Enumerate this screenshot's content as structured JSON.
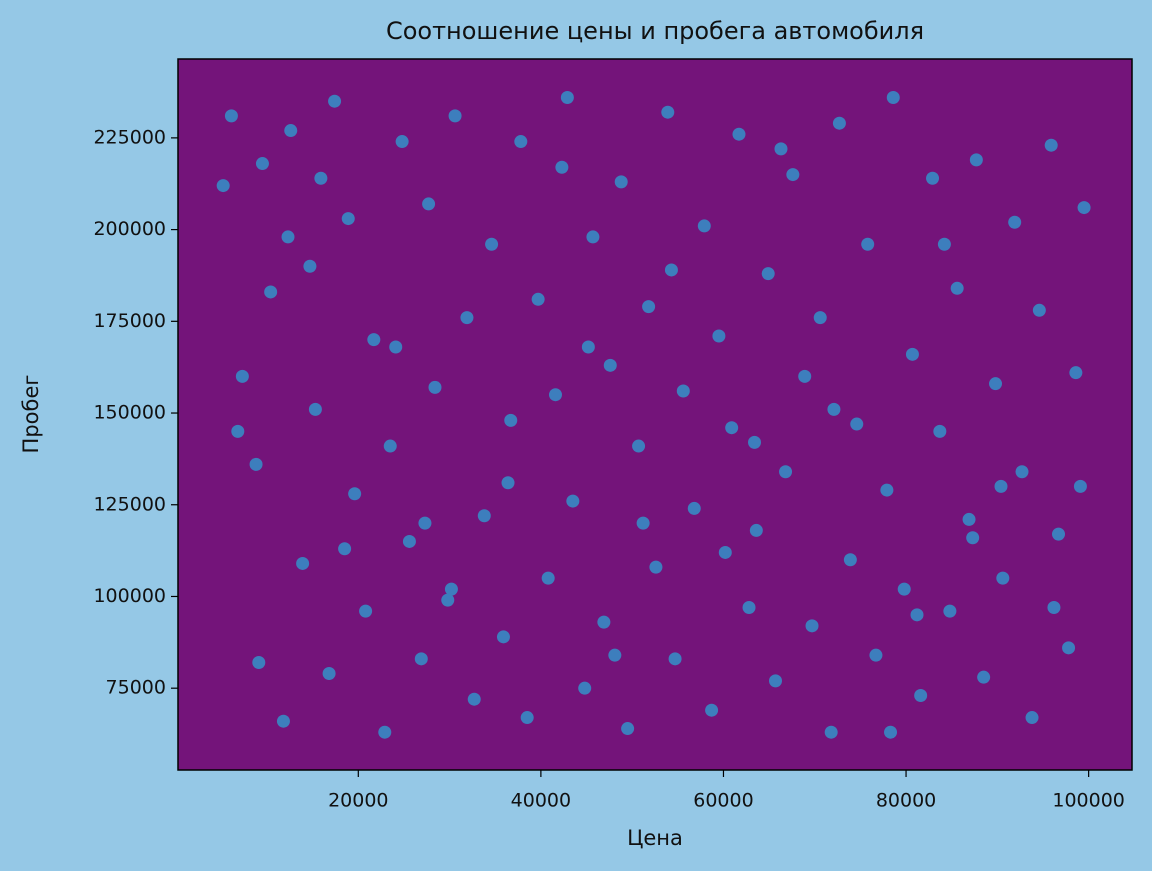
{
  "chart_data": {
    "type": "scatter",
    "title": "Соотношение цены и пробега автомобиля",
    "xlabel": "Цена",
    "ylabel": "Пробег",
    "color": "#3d7ebd",
    "background": "#74147a",
    "x": [
      5200,
      6100,
      7300,
      8800,
      9500,
      10400,
      11800,
      12600,
      13900,
      14700,
      15300,
      16800,
      17400,
      18900,
      19600,
      20800,
      21700,
      22900,
      23500,
      24800,
      25600,
      26900,
      27700,
      28400,
      29800,
      30600,
      31900,
      32700,
      33800,
      34600,
      35900,
      36700,
      37800,
      38500,
      39700,
      40800,
      41600,
      42900,
      43500,
      44800,
      45700,
      46900,
      47600,
      48800,
      49500,
      50700,
      51800,
      52600,
      53900,
      54700,
      55600,
      56800,
      57900,
      58700,
      59500,
      60900,
      61700,
      62800,
      63600,
      64900,
      65700,
      66800,
      67600,
      68900,
      69700,
      70600,
      71800,
      72700,
      73900,
      74600,
      75800,
      76700,
      77900,
      78600,
      79800,
      80700,
      81600,
      82900,
      83700,
      84800,
      85600,
      86900,
      87700,
      88500,
      89800,
      90600,
      91900,
      92700,
      93800,
      94600,
      95900,
      96700,
      97800,
      98600,
      99500,
      6800,
      12300,
      18500,
      24100,
      30200,
      36400,
      42300,
      48100,
      54300,
      60200,
      66300,
      72100,
      78300,
      84200,
      90400,
      96200,
      9100,
      27300,
      45200,
      63400,
      81200,
      99100,
      15900,
      51200,
      87300
    ],
    "values": [
      212000,
      231000,
      160000,
      136000,
      218000,
      183000,
      66000,
      227000,
      109000,
      190000,
      151000,
      79000,
      235000,
      203000,
      128000,
      96000,
      170000,
      63000,
      141000,
      224000,
      115000,
      83000,
      207000,
      157000,
      99000,
      231000,
      176000,
      72000,
      122000,
      196000,
      89000,
      148000,
      224000,
      67000,
      181000,
      105000,
      155000,
      236000,
      126000,
      75000,
      198000,
      93000,
      163000,
      213000,
      64000,
      141000,
      179000,
      108000,
      232000,
      83000,
      156000,
      124000,
      201000,
      69000,
      171000,
      146000,
      226000,
      97000,
      118000,
      188000,
      77000,
      134000,
      215000,
      160000,
      92000,
      176000,
      63000,
      229000,
      110000,
      147000,
      196000,
      84000,
      129000,
      236000,
      102000,
      166000,
      73000,
      214000,
      145000,
      96000,
      184000,
      121000,
      219000,
      78000,
      158000,
      105000,
      202000,
      134000,
      67000,
      178000,
      223000,
      117000,
      86000,
      161000,
      206000,
      145000,
      198000,
      113000,
      168000,
      102000,
      131000,
      217000,
      84000,
      189000,
      112000,
      222000,
      151000,
      63000,
      196000,
      130000,
      97000,
      82000,
      120000,
      168000,
      142000,
      95000,
      130000,
      214000,
      120000,
      116000
    ],
    "xlim": [
      250,
      104750
    ],
    "ylim": [
      52700,
      246500
    ],
    "xticks": [
      20000,
      40000,
      60000,
      80000,
      100000
    ],
    "yticks": [
      75000,
      100000,
      125000,
      150000,
      175000,
      200000,
      225000
    ]
  }
}
